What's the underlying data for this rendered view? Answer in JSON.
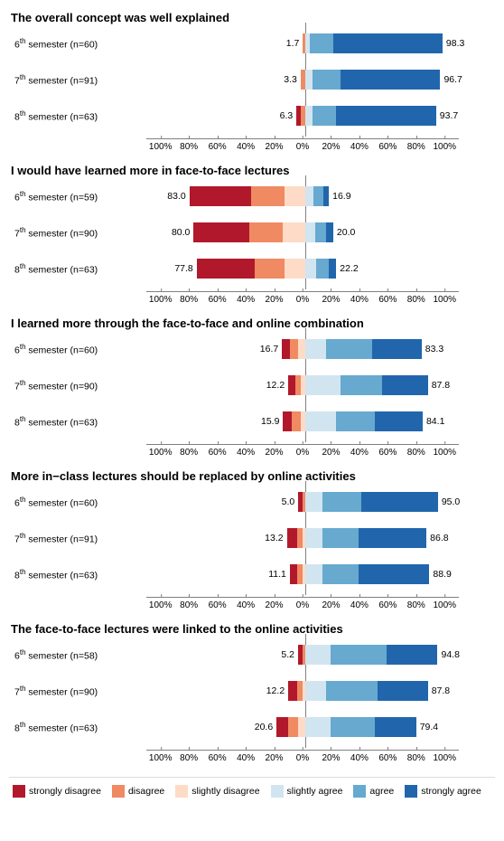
{
  "categories": [
    {
      "key": "strongly_disagree",
      "label": "strongly disagree",
      "color": "#b2182b"
    },
    {
      "key": "disagree",
      "label": "disagree",
      "color": "#ef8a62"
    },
    {
      "key": "slightly_disagree",
      "label": "slightly disagree",
      "color": "#fddbc7"
    },
    {
      "key": "slightly_agree",
      "label": "slightly agree",
      "color": "#d1e5f0"
    },
    {
      "key": "agree",
      "label": "agree",
      "color": "#67a9cf"
    },
    {
      "key": "strongly_agree",
      "label": "strongly agree",
      "color": "#2166ac"
    }
  ],
  "axis": {
    "min_pct": -110,
    "max_pct": 110,
    "ticks": [
      -100,
      -80,
      -60,
      -40,
      -20,
      0,
      20,
      40,
      60,
      80,
      100
    ],
    "tick_labels": [
      "100%",
      "80%",
      "60%",
      "40%",
      "20%",
      "0%",
      "20%",
      "40%",
      "60%",
      "80%",
      "100%"
    ]
  },
  "panels": [
    {
      "title": "The overall concept was well explained",
      "rows": [
        {
          "ylabel_html": "6<sup>th</sup> semester (n=60)",
          "neg_label": "1.7",
          "pos_label": "98.3",
          "segments": [
            {
              "cat": "disagree",
              "from": -1.7,
              "to": 0
            },
            {
              "cat": "slightly_agree",
              "from": 0,
              "to": 3
            },
            {
              "cat": "agree",
              "from": 3,
              "to": 20
            },
            {
              "cat": "strongly_agree",
              "from": 20,
              "to": 98.3
            }
          ]
        },
        {
          "ylabel_html": "7<sup>th</sup> semester (n=91)",
          "neg_label": "3.3",
          "pos_label": "96.7",
          "segments": [
            {
              "cat": "disagree",
              "from": -3.3,
              "to": 0
            },
            {
              "cat": "slightly_agree",
              "from": 0,
              "to": 5
            },
            {
              "cat": "agree",
              "from": 5,
              "to": 25
            },
            {
              "cat": "strongly_agree",
              "from": 25,
              "to": 96.7
            }
          ]
        },
        {
          "ylabel_html": "8<sup>th</sup> semester (n=63)",
          "neg_label": "6.3",
          "pos_label": "93.7",
          "segments": [
            {
              "cat": "strongly_disagree",
              "from": -6.3,
              "to": -3.0
            },
            {
              "cat": "disagree",
              "from": -3.0,
              "to": 0
            },
            {
              "cat": "slightly_agree",
              "from": 0,
              "to": 5
            },
            {
              "cat": "agree",
              "from": 5,
              "to": 22
            },
            {
              "cat": "strongly_agree",
              "from": 22,
              "to": 93.7
            }
          ]
        }
      ]
    },
    {
      "title": "I would have learned more in face-to-face lectures",
      "rows": [
        {
          "ylabel_html": "6<sup>th</sup> semester (n=59)",
          "neg_label": "83.0",
          "pos_label": "16.9",
          "segments": [
            {
              "cat": "strongly_disagree",
              "from": -83.0,
              "to": -39
            },
            {
              "cat": "disagree",
              "from": -39,
              "to": -15
            },
            {
              "cat": "slightly_disagree",
              "from": -15,
              "to": 0
            },
            {
              "cat": "slightly_agree",
              "from": 0,
              "to": 6
            },
            {
              "cat": "agree",
              "from": 6,
              "to": 13
            },
            {
              "cat": "strongly_agree",
              "from": 13,
              "to": 16.9
            }
          ]
        },
        {
          "ylabel_html": "7<sup>th</sup> semester (n=90)",
          "neg_label": "80.0",
          "pos_label": "20.0",
          "segments": [
            {
              "cat": "strongly_disagree",
              "from": -80.0,
              "to": -40
            },
            {
              "cat": "disagree",
              "from": -40,
              "to": -16
            },
            {
              "cat": "slightly_disagree",
              "from": -16,
              "to": 0
            },
            {
              "cat": "slightly_agree",
              "from": 0,
              "to": 7
            },
            {
              "cat": "agree",
              "from": 7,
              "to": 15
            },
            {
              "cat": "strongly_agree",
              "from": 15,
              "to": 20.0
            }
          ]
        },
        {
          "ylabel_html": "8<sup>th</sup> semester (n=63)",
          "neg_label": "77.8",
          "pos_label": "22.2",
          "segments": [
            {
              "cat": "strongly_disagree",
              "from": -77.8,
              "to": -36
            },
            {
              "cat": "disagree",
              "from": -36,
              "to": -15
            },
            {
              "cat": "slightly_disagree",
              "from": -15,
              "to": 0
            },
            {
              "cat": "slightly_agree",
              "from": 0,
              "to": 8
            },
            {
              "cat": "agree",
              "from": 8,
              "to": 17
            },
            {
              "cat": "strongly_agree",
              "from": 17,
              "to": 22.2
            }
          ]
        }
      ]
    },
    {
      "title": "I learned more through the face-to-face and online combination",
      "rows": [
        {
          "ylabel_html": "6<sup>th</sup> semester (n=60)",
          "neg_label": "16.7",
          "pos_label": "83.3",
          "segments": [
            {
              "cat": "strongly_disagree",
              "from": -16.7,
              "to": -11
            },
            {
              "cat": "disagree",
              "from": -11,
              "to": -5
            },
            {
              "cat": "slightly_disagree",
              "from": -5,
              "to": 0
            },
            {
              "cat": "slightly_agree",
              "from": 0,
              "to": 15
            },
            {
              "cat": "agree",
              "from": 15,
              "to": 48
            },
            {
              "cat": "strongly_agree",
              "from": 48,
              "to": 83.3
            }
          ]
        },
        {
          "ylabel_html": "7<sup>th</sup> semester (n=90)",
          "neg_label": "12.2",
          "pos_label": "87.8",
          "segments": [
            {
              "cat": "strongly_disagree",
              "from": -12.2,
              "to": -7
            },
            {
              "cat": "disagree",
              "from": -7,
              "to": -3
            },
            {
              "cat": "slightly_disagree",
              "from": -3,
              "to": 0
            },
            {
              "cat": "slightly_agree",
              "from": 0,
              "to": 25
            },
            {
              "cat": "agree",
              "from": 25,
              "to": 55
            },
            {
              "cat": "strongly_agree",
              "from": 55,
              "to": 87.8
            }
          ]
        },
        {
          "ylabel_html": "8<sup>th</sup> semester (n=63)",
          "neg_label": "15.9",
          "pos_label": "84.1",
          "segments": [
            {
              "cat": "strongly_disagree",
              "from": -15.9,
              "to": -10
            },
            {
              "cat": "disagree",
              "from": -10,
              "to": -3
            },
            {
              "cat": "slightly_disagree",
              "from": -3,
              "to": 0
            },
            {
              "cat": "slightly_agree",
              "from": 0,
              "to": 22
            },
            {
              "cat": "agree",
              "from": 22,
              "to": 50
            },
            {
              "cat": "strongly_agree",
              "from": 50,
              "to": 84.1
            }
          ]
        }
      ]
    },
    {
      "title": "More in−class lectures should be replaced by online activities",
      "rows": [
        {
          "ylabel_html": "6<sup>th</sup> semester (n=60)",
          "neg_label": "5.0",
          "pos_label": "95.0",
          "segments": [
            {
              "cat": "strongly_disagree",
              "from": -5.0,
              "to": -2
            },
            {
              "cat": "disagree",
              "from": -2,
              "to": 0
            },
            {
              "cat": "slightly_agree",
              "from": 0,
              "to": 12
            },
            {
              "cat": "agree",
              "from": 12,
              "to": 40
            },
            {
              "cat": "strongly_agree",
              "from": 40,
              "to": 95.0
            }
          ]
        },
        {
          "ylabel_html": "7<sup>th</sup> semester (n=91)",
          "neg_label": "13.2",
          "pos_label": "86.8",
          "segments": [
            {
              "cat": "strongly_disagree",
              "from": -13.2,
              "to": -6
            },
            {
              "cat": "disagree",
              "from": -6,
              "to": -2
            },
            {
              "cat": "slightly_disagree",
              "from": -2,
              "to": 0
            },
            {
              "cat": "slightly_agree",
              "from": 0,
              "to": 12
            },
            {
              "cat": "agree",
              "from": 12,
              "to": 38
            },
            {
              "cat": "strongly_agree",
              "from": 38,
              "to": 86.8
            }
          ]
        },
        {
          "ylabel_html": "8<sup>th</sup> semester (n=63)",
          "neg_label": "11.1",
          "pos_label": "88.9",
          "segments": [
            {
              "cat": "strongly_disagree",
              "from": -11.1,
              "to": -6
            },
            {
              "cat": "disagree",
              "from": -6,
              "to": -2
            },
            {
              "cat": "slightly_disagree",
              "from": -2,
              "to": 0
            },
            {
              "cat": "slightly_agree",
              "from": 0,
              "to": 12
            },
            {
              "cat": "agree",
              "from": 12,
              "to": 38
            },
            {
              "cat": "strongly_agree",
              "from": 38,
              "to": 88.9
            }
          ]
        }
      ]
    },
    {
      "title": "The face-to-face lectures were linked to the online activities",
      "rows": [
        {
          "ylabel_html": "6<sup>th</sup> semester (n=58)",
          "neg_label": "5.2",
          "pos_label": "94.8",
          "segments": [
            {
              "cat": "strongly_disagree",
              "from": -5.2,
              "to": -2
            },
            {
              "cat": "disagree",
              "from": -2,
              "to": 0
            },
            {
              "cat": "slightly_agree",
              "from": 0,
              "to": 18
            },
            {
              "cat": "agree",
              "from": 18,
              "to": 58
            },
            {
              "cat": "strongly_agree",
              "from": 58,
              "to": 94.8
            }
          ]
        },
        {
          "ylabel_html": "7<sup>th</sup> semester (n=90)",
          "neg_label": "12.2",
          "pos_label": "87.8",
          "segments": [
            {
              "cat": "strongly_disagree",
              "from": -12.2,
              "to": -6
            },
            {
              "cat": "disagree",
              "from": -6,
              "to": -2
            },
            {
              "cat": "slightly_disagree",
              "from": -2,
              "to": 0
            },
            {
              "cat": "slightly_agree",
              "from": 0,
              "to": 15
            },
            {
              "cat": "agree",
              "from": 15,
              "to": 52
            },
            {
              "cat": "strongly_agree",
              "from": 52,
              "to": 87.8
            }
          ]
        },
        {
          "ylabel_html": "8<sup>th</sup> semester (n=63)",
          "neg_label": "20.6",
          "pos_label": "79.4",
          "segments": [
            {
              "cat": "strongly_disagree",
              "from": -20.6,
              "to": -12
            },
            {
              "cat": "disagree",
              "from": -12,
              "to": -5
            },
            {
              "cat": "slightly_disagree",
              "from": -5,
              "to": 0
            },
            {
              "cat": "slightly_agree",
              "from": 0,
              "to": 18
            },
            {
              "cat": "agree",
              "from": 18,
              "to": 50
            },
            {
              "cat": "strongly_agree",
              "from": 50,
              "to": 79.4
            }
          ]
        }
      ]
    }
  ]
}
